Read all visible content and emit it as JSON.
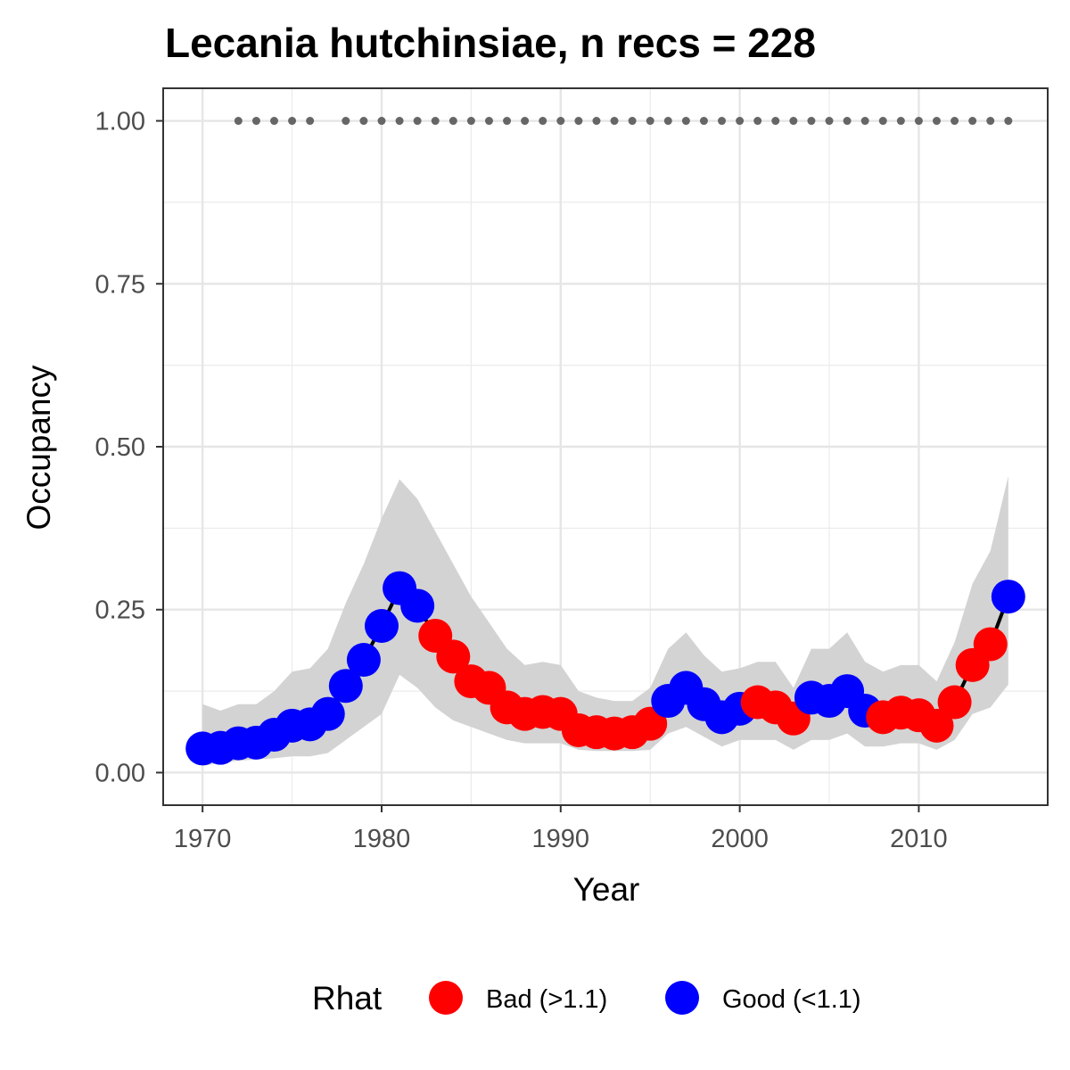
{
  "chart_data": {
    "type": "line",
    "title": "Lecania hutchinsiae, n recs = 228",
    "xlabel": "Year",
    "ylabel": "Occupancy",
    "xlim": [
      1967.8,
      2017.2
    ],
    "ylim": [
      -0.05,
      1.05
    ],
    "x_ticks": [
      1970,
      1980,
      1990,
      2000,
      2010
    ],
    "x_tick_labels": [
      "1970",
      "1980",
      "1990",
      "2000",
      "2010"
    ],
    "y_ticks": [
      0,
      0.25,
      0.5,
      0.75,
      1.0
    ],
    "y_tick_labels": [
      "0.00",
      "0.25",
      "0.50",
      "0.75",
      "1.00"
    ],
    "grid": true,
    "legend": {
      "title": "Rhat",
      "position": "bottom",
      "items": [
        {
          "label": "Bad (>1.1)",
          "color": "#ff0000"
        },
        {
          "label": "Good (<1.1)",
          "color": "#0000ff"
        }
      ]
    },
    "colors": {
      "bad": "#ff0000",
      "good": "#0000ff",
      "line": "#000000",
      "ribbon": "#d3d3d3",
      "record_dots": "#666666"
    },
    "series": [
      {
        "x": [
          1970,
          1971,
          1972,
          1973,
          1974,
          1975,
          1976,
          1977,
          1978,
          1979,
          1980,
          1981,
          1982,
          1983,
          1984,
          1985,
          1986,
          1987,
          1988,
          1989,
          1990,
          1991,
          1992,
          1993,
          1994,
          1995,
          1996,
          1997,
          1998,
          1999,
          2000,
          2001,
          2002,
          2003,
          2004,
          2005,
          2006,
          2007,
          2008,
          2009,
          2010,
          2011,
          2012,
          2013,
          2014,
          2015
        ],
        "y": [
          0.037,
          0.038,
          0.045,
          0.046,
          0.058,
          0.072,
          0.074,
          0.09,
          0.133,
          0.173,
          0.225,
          0.283,
          0.256,
          0.21,
          0.178,
          0.14,
          0.13,
          0.1,
          0.09,
          0.093,
          0.09,
          0.065,
          0.062,
          0.06,
          0.062,
          0.075,
          0.11,
          0.13,
          0.105,
          0.085,
          0.098,
          0.108,
          0.1,
          0.083,
          0.115,
          0.11,
          0.125,
          0.095,
          0.085,
          0.092,
          0.088,
          0.072,
          0.108,
          0.165,
          0.197,
          0.27
        ],
        "lower": [
          0.01,
          0.015,
          0.018,
          0.02,
          0.022,
          0.025,
          0.025,
          0.03,
          0.05,
          0.07,
          0.09,
          0.15,
          0.13,
          0.1,
          0.08,
          0.07,
          0.06,
          0.05,
          0.045,
          0.045,
          0.045,
          0.035,
          0.033,
          0.033,
          0.033,
          0.035,
          0.06,
          0.07,
          0.055,
          0.04,
          0.05,
          0.05,
          0.05,
          0.035,
          0.05,
          0.05,
          0.06,
          0.04,
          0.04,
          0.045,
          0.045,
          0.035,
          0.05,
          0.09,
          0.1,
          0.135
        ],
        "upper": [
          0.105,
          0.095,
          0.105,
          0.105,
          0.125,
          0.155,
          0.16,
          0.19,
          0.26,
          0.32,
          0.39,
          0.45,
          0.42,
          0.37,
          0.32,
          0.27,
          0.23,
          0.19,
          0.165,
          0.17,
          0.165,
          0.125,
          0.115,
          0.11,
          0.11,
          0.13,
          0.19,
          0.215,
          0.18,
          0.155,
          0.16,
          0.17,
          0.17,
          0.13,
          0.19,
          0.19,
          0.215,
          0.17,
          0.155,
          0.165,
          0.165,
          0.14,
          0.2,
          0.29,
          0.34,
          0.455
        ],
        "rhat": [
          "Good",
          "Good",
          "Good",
          "Good",
          "Good",
          "Good",
          "Good",
          "Good",
          "Good",
          "Good",
          "Good",
          "Good",
          "Good",
          "Bad",
          "Bad",
          "Bad",
          "Bad",
          "Bad",
          "Bad",
          "Bad",
          "Bad",
          "Bad",
          "Bad",
          "Bad",
          "Bad",
          "Bad",
          "Good",
          "Good",
          "Good",
          "Good",
          "Good",
          "Bad",
          "Bad",
          "Bad",
          "Good",
          "Good",
          "Good",
          "Good",
          "Bad",
          "Bad",
          "Bad",
          "Bad",
          "Bad",
          "Bad",
          "Bad",
          "Good"
        ]
      }
    ],
    "record_years": [
      1972,
      1973,
      1974,
      1975,
      1976,
      1978,
      1979,
      1980,
      1981,
      1982,
      1983,
      1984,
      1985,
      1986,
      1987,
      1988,
      1989,
      1990,
      1991,
      1992,
      1993,
      1994,
      1995,
      1996,
      1997,
      1998,
      1999,
      2000,
      2001,
      2002,
      2003,
      2004,
      2005,
      2006,
      2007,
      2008,
      2009,
      2010,
      2011,
      2012,
      2013,
      2014,
      2015
    ],
    "record_y": 1.0
  }
}
